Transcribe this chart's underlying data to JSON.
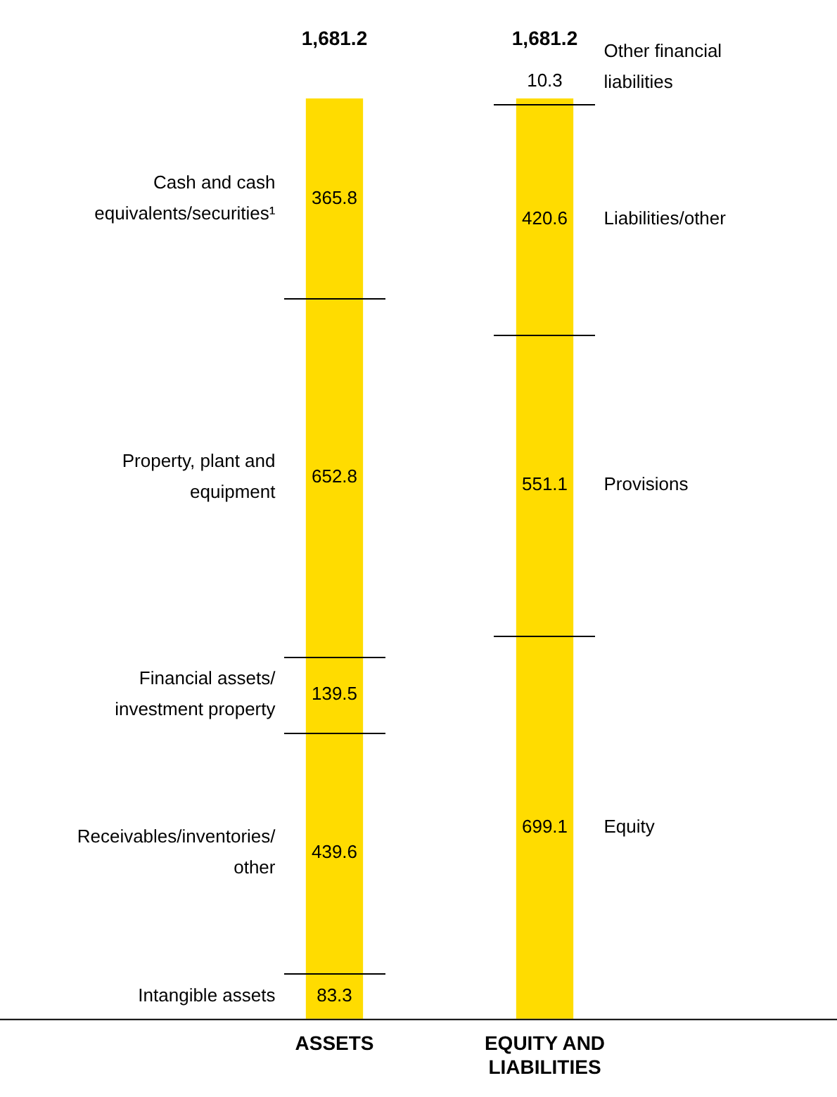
{
  "chart_data": {
    "type": "bar",
    "stacked": true,
    "categories": [
      "ASSETS",
      "EQUITY AND LIABILITIES"
    ],
    "series": [
      {
        "name": "Intangible assets",
        "color": "#ffdc00",
        "values": [
          83.3,
          null
        ]
      },
      {
        "name": "Receivables/inventories/other",
        "color": "#ffdc00",
        "values": [
          439.6,
          null
        ]
      },
      {
        "name": "Financial assets/investment property",
        "color": "#ffdc00",
        "values": [
          139.5,
          null
        ]
      },
      {
        "name": "Property, plant and equipment",
        "color": "#ffdc00",
        "values": [
          652.8,
          null
        ]
      },
      {
        "name": "Cash and cash equivalents/securities¹",
        "color": "#ffdc00",
        "values": [
          365.8,
          null
        ]
      },
      {
        "name": "Equity",
        "color": "#ffdc00",
        "values": [
          null,
          699.1
        ]
      },
      {
        "name": "Provisions",
        "color": "#ffdc00",
        "values": [
          null,
          551.1
        ]
      },
      {
        "name": "Liabilities/other",
        "color": "#ffdc00",
        "values": [
          null,
          420.6
        ]
      },
      {
        "name": "Other financial liabilities",
        "color": "#ffdc00",
        "values": [
          null,
          10.3
        ]
      }
    ],
    "data_labels": true,
    "totals": [
      "1,681.2",
      "1,681.2"
    ],
    "legend": false,
    "grid": false
  }
}
